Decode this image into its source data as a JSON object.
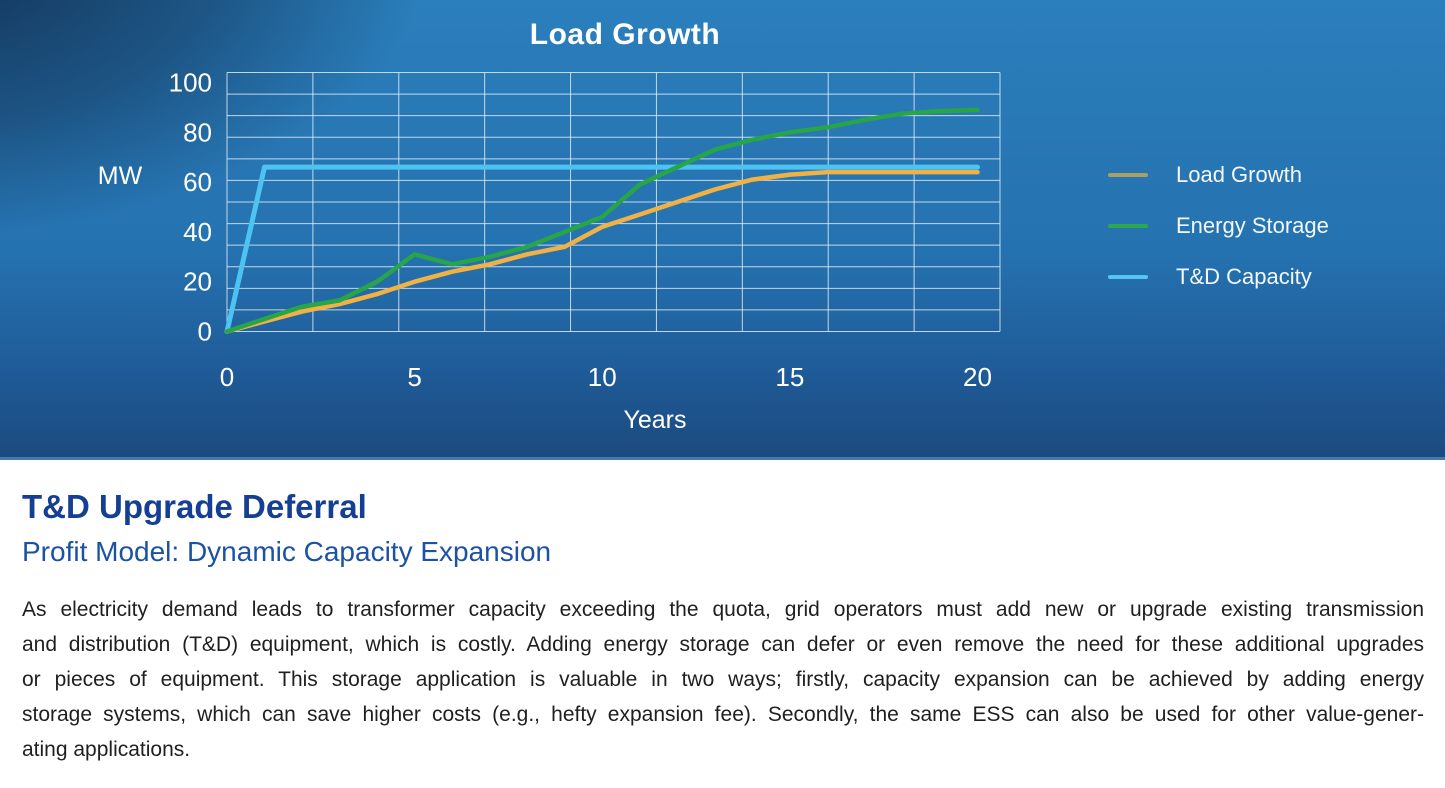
{
  "chart_panel": {
    "title": "Load Growth"
  },
  "chart_data": {
    "type": "line",
    "title": "Load Growth",
    "xlabel": "Years",
    "ylabel": "MW",
    "x": [
      0,
      1,
      2,
      3,
      4,
      5,
      6,
      7,
      8,
      9,
      10,
      11,
      12,
      13,
      14,
      15,
      16,
      17,
      18,
      19,
      20
    ],
    "x_ticks": [
      0,
      5,
      10,
      15,
      20
    ],
    "y_ticks": [
      0,
      20,
      40,
      60,
      80,
      100
    ],
    "xlim": [
      0,
      20.6
    ],
    "ylim": [
      0,
      104
    ],
    "grid": {
      "h_lines": 13,
      "v_lines": 10,
      "color": "rgba(235,242,248,0.8)"
    },
    "legend_position": "right",
    "series": [
      {
        "name": "Load Growth",
        "color": "#f2b243",
        "legend_color": "#a9a061",
        "width": 4.5,
        "values": [
          0,
          4,
          8,
          11,
          15,
          20,
          24,
          27,
          31,
          34,
          42,
          47,
          52,
          57,
          61,
          63,
          64,
          64,
          64,
          64,
          64
        ]
      },
      {
        "name": "Energy Storage",
        "color": "#28a449",
        "legend_color": "#2ba84b",
        "width": 4.5,
        "values": [
          0,
          5,
          10,
          12.5,
          20,
          31,
          27,
          30,
          34,
          40,
          46,
          59,
          66,
          73,
          77,
          80,
          82,
          85,
          87.5,
          88.5,
          89
        ]
      },
      {
        "name": "T&D Capacity",
        "color": "#4dc3f2",
        "legend_color": "#55c6f2",
        "width": 5,
        "values": [
          0,
          66,
          66,
          66,
          66,
          66,
          66,
          66,
          66,
          66,
          66,
          66,
          66,
          66,
          66,
          66,
          66,
          66,
          66,
          66,
          66
        ]
      }
    ]
  },
  "text_panel": {
    "heading": "T&D Upgrade Deferral",
    "subheading": "Profit Model: Dynamic Capacity Expansion",
    "paragraph_lines": [
      "As electricity demand leads to transformer capacity exceeding the quota, grid operators must add new or upgrade existing transmission",
      "and distribution (T&D) equipment, which is costly. Adding energy storage can defer or even remove the need for these additional upgrades",
      "or pieces of equipment.  This storage application is valuable in two ways; firstly, capacity expansion can be achieved by adding energy",
      "storage systems, which can save higher costs (e.g., hefty expansion fee). Secondly, the same ESS can also be used for other value-gener-",
      "ating applications."
    ]
  },
  "colors": {
    "heading": "#153f94",
    "subheading": "#1c52a4",
    "panel_light": "#2a7fbc",
    "panel_dark": "#14335c",
    "panel_bottom": "#1b4a7f"
  }
}
